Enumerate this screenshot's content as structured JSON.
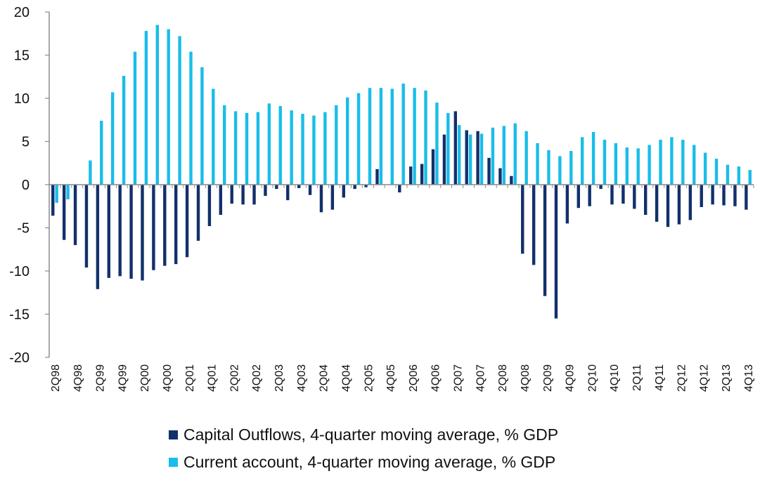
{
  "chart_data": {
    "type": "bar",
    "title": "",
    "xlabel": "",
    "ylabel": "",
    "ylim": [
      -20,
      20
    ],
    "yticks": [
      20,
      15,
      10,
      5,
      0,
      -5,
      -10,
      -15,
      -20
    ],
    "grid": false,
    "legend_position": "bottom",
    "categories": [
      "2Q98",
      "3Q98",
      "4Q98",
      "1Q99",
      "2Q99",
      "3Q99",
      "4Q99",
      "1Q00",
      "2Q00",
      "3Q00",
      "4Q00",
      "1Q01",
      "2Q01",
      "3Q01",
      "4Q01",
      "1Q02",
      "2Q02",
      "3Q02",
      "4Q02",
      "1Q03",
      "2Q03",
      "3Q03",
      "4Q03",
      "1Q04",
      "2Q04",
      "3Q04",
      "4Q04",
      "1Q05",
      "2Q05",
      "3Q05",
      "4Q05",
      "1Q06",
      "2Q06",
      "3Q06",
      "4Q06",
      "1Q07",
      "2Q07",
      "3Q07",
      "4Q07",
      "1Q08",
      "2Q08",
      "3Q08",
      "4Q08",
      "1Q09",
      "2Q09",
      "3Q09",
      "4Q09",
      "1Q10",
      "2Q10",
      "3Q10",
      "4Q10",
      "1Q11",
      "2Q11",
      "3Q11",
      "4Q11",
      "1Q12",
      "2Q12",
      "3Q12",
      "4Q12",
      "1Q13",
      "2Q13",
      "3Q13",
      "4Q13"
    ],
    "tick_labels": [
      "2Q98",
      "4Q98",
      "2Q99",
      "4Q99",
      "2Q00",
      "4Q00",
      "2Q01",
      "4Q01",
      "2Q02",
      "4Q02",
      "2Q03",
      "4Q03",
      "2Q04",
      "4Q04",
      "2Q05",
      "4Q05",
      "2Q06",
      "4Q06",
      "2Q07",
      "4Q07",
      "2Q08",
      "4Q08",
      "2Q09",
      "4Q09",
      "2Q10",
      "4Q10",
      "2Q11",
      "4Q11",
      "2Q12",
      "4Q12",
      "2Q13",
      "4Q13"
    ],
    "series": [
      {
        "name": "Capital Outflows, 4-quarter moving average, % GDP",
        "color": "#12306b",
        "values": [
          -3.6,
          -6.4,
          -7.0,
          -9.6,
          -12.1,
          -10.8,
          -10.6,
          -10.9,
          -11.1,
          -9.9,
          -9.4,
          -9.2,
          -8.4,
          -6.5,
          -4.8,
          -3.5,
          -2.2,
          -2.3,
          -2.3,
          -1.3,
          -0.5,
          -1.8,
          -0.4,
          -1.2,
          -3.2,
          -2.9,
          -1.5,
          -0.5,
          -0.3,
          1.8,
          0,
          -0.9,
          2.1,
          2.4,
          4.1,
          5.8,
          8.5,
          6.3,
          6.2,
          3.1,
          1.9,
          1.0,
          -8.0,
          -9.3,
          -12.9,
          -15.5,
          -4.5,
          -2.7,
          -2.5,
          -0.5,
          -2.3,
          -2.2,
          -2.8,
          -3.5,
          -4.3,
          -4.9,
          -4.6,
          -4.1,
          -2.6,
          -2.3,
          -2.4,
          -2.5,
          -2.9
        ]
      },
      {
        "name": "Current account, 4-quarter moving average, % GDP",
        "color": "#19bde9",
        "values": [
          -2.1,
          -1.7,
          0,
          2.8,
          7.4,
          10.7,
          12.6,
          15.4,
          17.8,
          18.5,
          18.0,
          17.2,
          15.4,
          13.6,
          11.1,
          9.2,
          8.5,
          8.3,
          8.4,
          9.4,
          9.1,
          8.6,
          8.2,
          8.0,
          8.4,
          9.2,
          10.1,
          10.6,
          11.2,
          11.2,
          11.1,
          11.7,
          11.2,
          10.9,
          9.5,
          8.3,
          6.9,
          5.8,
          5.9,
          6.6,
          6.8,
          7.1,
          6.2,
          4.8,
          4.0,
          3.3,
          3.9,
          5.5,
          6.1,
          5.2,
          4.8,
          4.3,
          4.2,
          4.6,
          5.2,
          5.5,
          5.2,
          4.6,
          3.7,
          3.0,
          2.3,
          2.1,
          1.7
        ]
      }
    ]
  }
}
